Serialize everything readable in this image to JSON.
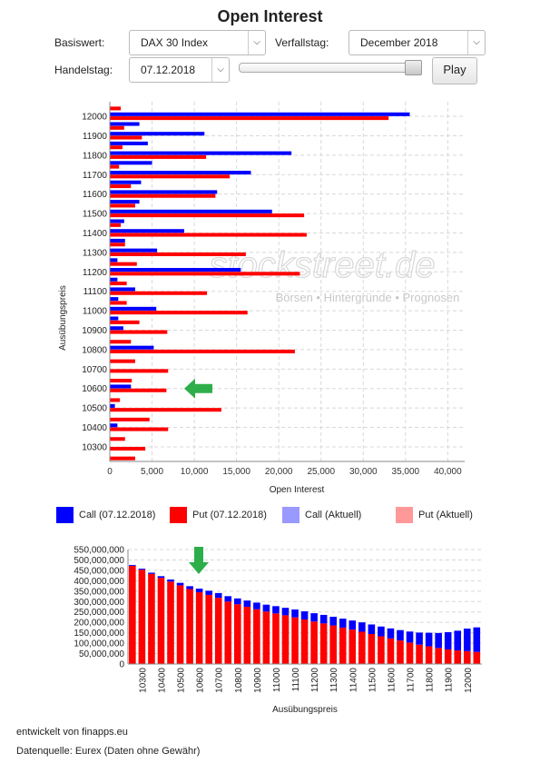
{
  "header": {
    "title": "Open Interest"
  },
  "controls": {
    "underlying_label": "Basiswert:",
    "underlying_value": "DAX 30 Index",
    "expiry_label": "Verfallstag:",
    "expiry_value": "December 2018",
    "tradeday_label": "Handelstag:",
    "tradeday_value": "07.12.2018",
    "play_label": "Play",
    "slider_position": 1.0
  },
  "watermark": {
    "brand": "stockstreet.de",
    "tagline": "Börsen • Hintergründe • Prognosen"
  },
  "legend": [
    {
      "label": "Call (07.12.2018)",
      "color": "#0000ff"
    },
    {
      "label": "Put (07.12.2018)",
      "color": "#ff0000"
    },
    {
      "label": "Call (Aktuell)",
      "color": "#9999ff"
    },
    {
      "label": "Put (Aktuell)",
      "color": "#ff9999"
    }
  ],
  "footer": {
    "developer": "entwickelt von finapps.eu",
    "source": "Datenquelle: Eurex (Daten ohne Gewähr)"
  },
  "colors": {
    "call": "#0000ff",
    "put": "#ff0000",
    "grid": "#d8d8d8",
    "arrow": "#2eae4a"
  },
  "chart_data": [
    {
      "type": "bar",
      "orientation": "horizontal",
      "xlabel": "Open Interest",
      "ylabel": "Ausübungspreis",
      "xlim": [
        0,
        42000
      ],
      "xticks": [
        0,
        5000,
        10000,
        15000,
        20000,
        25000,
        30000,
        35000,
        40000
      ],
      "xtick_labels": [
        "0",
        "5,000",
        "10,000",
        "15,000",
        "20,000",
        "25,000",
        "30,000",
        "35,000",
        "40,000"
      ],
      "strikes": [
        12050,
        12000,
        11950,
        11900,
        11850,
        11800,
        11750,
        11700,
        11650,
        11600,
        11550,
        11500,
        11450,
        11400,
        11350,
        11300,
        11250,
        11200,
        11150,
        11100,
        11050,
        11000,
        10950,
        10900,
        10850,
        10800,
        10750,
        10700,
        10650,
        10600,
        10550,
        10500,
        10450,
        10400,
        10350,
        10300,
        10250
      ],
      "ytick_labels": [
        "12000",
        "11900",
        "11800",
        "11700",
        "11600",
        "11500",
        "11400",
        "11300",
        "11200",
        "11100",
        "11000",
        "10900",
        "10800",
        "10700",
        "10600",
        "10500",
        "10400",
        "10300"
      ],
      "series": [
        {
          "name": "Call (07.12.2018)",
          "color": "#0000ff",
          "values": [
            0,
            35500,
            3500,
            11200,
            4500,
            21500,
            5000,
            16700,
            3700,
            12700,
            3500,
            19200,
            1700,
            8800,
            1800,
            5600,
            900,
            15500,
            900,
            3000,
            1000,
            5500,
            1000,
            1600,
            0,
            5200,
            0,
            0,
            0,
            2500,
            0,
            600,
            0,
            900,
            0,
            0,
            0
          ]
        },
        {
          "name": "Put (07.12.2018)",
          "color": "#ff0000",
          "values": [
            1300,
            33000,
            1700,
            3800,
            1500,
            11400,
            1100,
            14200,
            2500,
            12500,
            3000,
            23000,
            1300,
            23300,
            1800,
            16100,
            3200,
            22500,
            2000,
            11500,
            2000,
            16300,
            3500,
            6800,
            2500,
            21900,
            3000,
            6900,
            2600,
            6700,
            1200,
            13200,
            4700,
            6900,
            1800,
            4200,
            3000
          ]
        }
      ]
    },
    {
      "type": "bar",
      "stacked": true,
      "xlabel": "Ausübungspreis",
      "ylim": [
        0,
        550000000
      ],
      "yticks": [
        0,
        50000000,
        100000000,
        150000000,
        200000000,
        250000000,
        300000000,
        350000000,
        400000000,
        450000000,
        500000000,
        550000000
      ],
      "ytick_labels": [
        "0",
        "50,000,000",
        "100,000,000",
        "150,000,000",
        "200,000,000",
        "250,000,000",
        "300,000,000",
        "350,000,000",
        "400,000,000",
        "450,000,000",
        "500,000,000",
        "550,000,000"
      ],
      "xtick_labels": [
        "10300",
        "10400",
        "10500",
        "10600",
        "10700",
        "10800",
        "10900",
        "11000",
        "11100",
        "11200",
        "11300",
        "11400",
        "11500",
        "11600",
        "11700",
        "11800",
        "11900",
        "12000"
      ],
      "bars_count": 37,
      "series": [
        {
          "name": "Call (07.12.2018)",
          "color": "#0000ff",
          "values": [
            4000000,
            5000000,
            6000000,
            8000000,
            10000000,
            12000000,
            14000000,
            17000000,
            20000000,
            23000000,
            26000000,
            28000000,
            30000000,
            32000000,
            33000000,
            35000000,
            36000000,
            38000000,
            39000000,
            40000000,
            41000000,
            42000000,
            43000000,
            44000000,
            45000000,
            46000000,
            47000000,
            48000000,
            50000000,
            53000000,
            58000000,
            65000000,
            72000000,
            83000000,
            95000000,
            108000000,
            118000000
          ]
        },
        {
          "name": "Put (07.12.2018)",
          "color": "#ff0000",
          "values": [
            472000000,
            453000000,
            433000000,
            414000000,
            396000000,
            378000000,
            360000000,
            345000000,
            332000000,
            318000000,
            300000000,
            287000000,
            275000000,
            263000000,
            252000000,
            243000000,
            234000000,
            224000000,
            214000000,
            204000000,
            195000000,
            185000000,
            175000000,
            165000000,
            155000000,
            144000000,
            133000000,
            123000000,
            113000000,
            103000000,
            93000000,
            85000000,
            77000000,
            70000000,
            65000000,
            62000000,
            58000000
          ]
        }
      ]
    }
  ]
}
